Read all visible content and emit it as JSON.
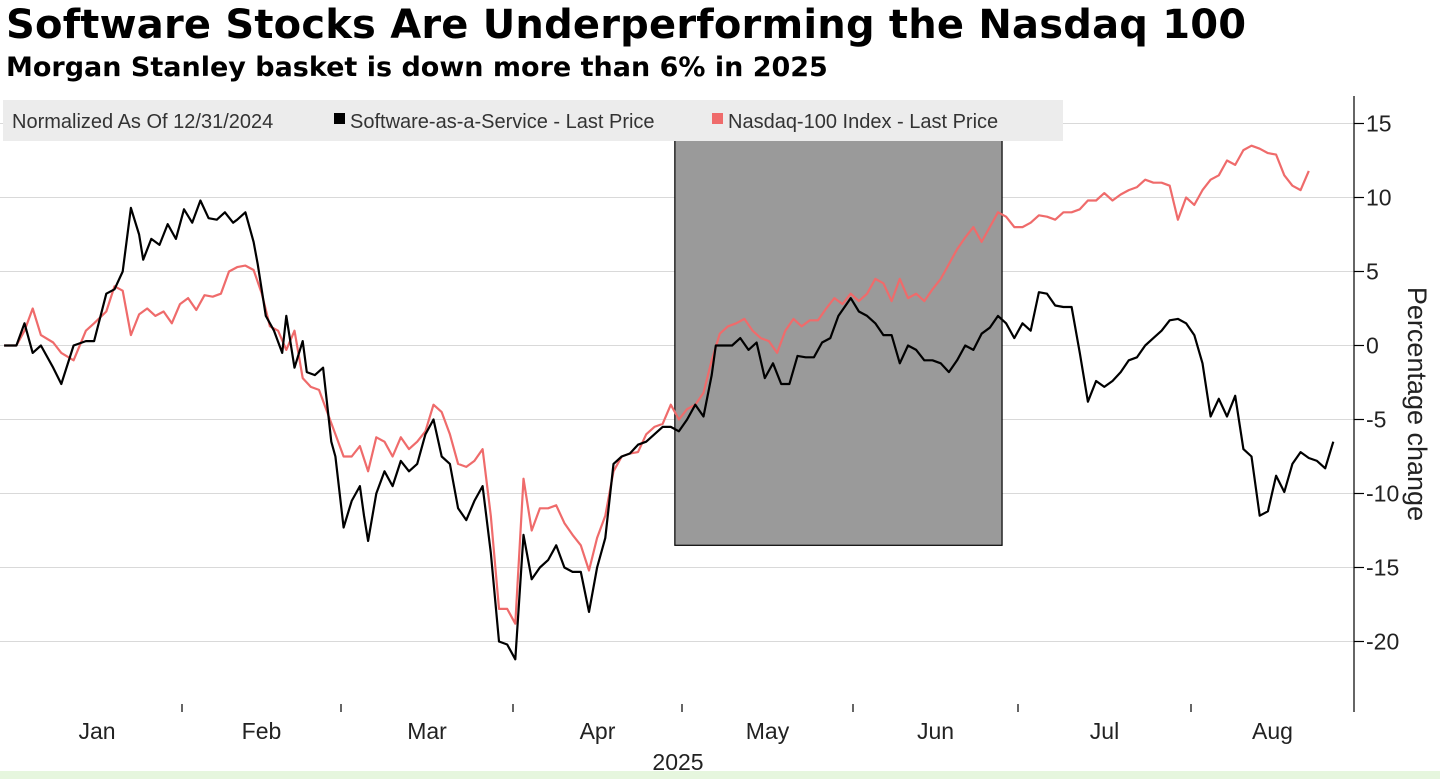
{
  "chart_data": {
    "type": "line",
    "title": "Software Stocks Are Underperforming the Nasdaq 100",
    "subtitle": "Morgan Stanley basket is down more than 6% in 2025",
    "legend_title": "Normalized As Of 12/31/2024",
    "legend_position": "top-left",
    "xlabel": "2025",
    "ylabel": "Percentage change",
    "ylim": [
      -23,
      17
    ],
    "y_ticks": [
      "15",
      "10",
      "5",
      "0",
      "-5",
      "-10",
      "-15",
      "-20"
    ],
    "x_ticks": [
      "Jan",
      "Feb",
      "Mar",
      "Apr",
      "May",
      "Jun",
      "Jul",
      "Aug"
    ],
    "highlight_region": {
      "from_day": 165,
      "to_day": 245,
      "from_value": -13.5,
      "to_value": 15.5,
      "color": "#9a9a9a"
    },
    "colors": {
      "saas": "#000000",
      "nasdaq": "#ef6b6b"
    },
    "series": [
      {
        "name": "Software-as-a-Service - Last Price",
        "color": "#000000",
        "points": [
          [
            1,
            0
          ],
          [
            4,
            0
          ],
          [
            6,
            1.5
          ],
          [
            8,
            -0.5
          ],
          [
            10,
            0
          ],
          [
            13,
            -1.5
          ],
          [
            15,
            -2.6
          ],
          [
            18,
            0
          ],
          [
            21,
            0.3
          ],
          [
            23,
            0.3
          ],
          [
            26,
            3.5
          ],
          [
            28,
            3.8
          ],
          [
            30,
            5
          ],
          [
            32,
            9.3
          ],
          [
            34,
            7.5
          ],
          [
            35,
            5.8
          ],
          [
            37,
            7.2
          ],
          [
            39,
            6.8
          ],
          [
            41,
            8.2
          ],
          [
            43,
            7.2
          ],
          [
            45,
            9.2
          ],
          [
            47,
            8.3
          ],
          [
            49,
            9.8
          ],
          [
            51,
            8.6
          ],
          [
            53,
            8.5
          ],
          [
            55,
            9
          ],
          [
            57,
            8.3
          ],
          [
            58,
            8.5
          ],
          [
            60,
            9
          ],
          [
            62,
            7
          ],
          [
            63,
            5.5
          ],
          [
            65,
            2
          ],
          [
            67,
            1
          ],
          [
            69,
            -0.5
          ],
          [
            70,
            2
          ],
          [
            72,
            -1.5
          ],
          [
            74,
            0.3
          ],
          [
            75,
            -1.8
          ],
          [
            77,
            -2
          ],
          [
            79,
            -1.5
          ],
          [
            81,
            -6.5
          ],
          [
            82,
            -7.5
          ],
          [
            84,
            -12.3
          ],
          [
            86,
            -10.5
          ],
          [
            88,
            -9.5
          ],
          [
            89,
            -11.5
          ],
          [
            90,
            -13.2
          ],
          [
            92,
            -10
          ],
          [
            94,
            -8.5
          ],
          [
            96,
            -9.5
          ],
          [
            98,
            -7.8
          ],
          [
            100,
            -8.5
          ],
          [
            102,
            -8
          ],
          [
            104,
            -6
          ],
          [
            106,
            -5
          ],
          [
            108,
            -7.5
          ],
          [
            110,
            -8
          ],
          [
            112,
            -11
          ],
          [
            114,
            -11.8
          ],
          [
            116,
            -10.5
          ],
          [
            118,
            -9.5
          ],
          [
            120,
            -14
          ],
          [
            122,
            -20
          ],
          [
            124,
            -20.2
          ],
          [
            126,
            -21.2
          ],
          [
            128,
            -12.8
          ],
          [
            130,
            -15.8
          ],
          [
            132,
            -15
          ],
          [
            134,
            -14.5
          ],
          [
            136,
            -13.5
          ],
          [
            138,
            -15
          ],
          [
            140,
            -15.3
          ],
          [
            142,
            -15.3
          ],
          [
            144,
            -18
          ],
          [
            146,
            -15
          ],
          [
            148,
            -13
          ],
          [
            150,
            -8
          ],
          [
            152,
            -7.5
          ],
          [
            154,
            -7.3
          ],
          [
            156,
            -6.7
          ],
          [
            158,
            -6.5
          ],
          [
            160,
            -6
          ],
          [
            162,
            -5.5
          ],
          [
            164,
            -5.5
          ],
          [
            166,
            -5.8
          ],
          [
            168,
            -5
          ],
          [
            170,
            -4
          ],
          [
            172,
            -4.8
          ],
          [
            174,
            -2
          ],
          [
            175,
            0
          ],
          [
            177,
            0
          ],
          [
            179,
            0
          ],
          [
            181,
            0.5
          ],
          [
            183,
            -0.3
          ],
          [
            185,
            0.2
          ],
          [
            187,
            -2.2
          ],
          [
            189,
            -1.2
          ],
          [
            191,
            -2.6
          ],
          [
            193,
            -2.6
          ],
          [
            195,
            -0.7
          ],
          [
            197,
            -0.8
          ],
          [
            199,
            -0.8
          ],
          [
            201,
            0.2
          ],
          [
            203,
            0.5
          ],
          [
            205,
            2
          ],
          [
            207,
            2.8
          ],
          [
            208,
            3.2
          ],
          [
            210,
            2.3
          ],
          [
            212,
            2
          ],
          [
            214,
            1.5
          ],
          [
            216,
            0.7
          ],
          [
            218,
            0.7
          ],
          [
            220,
            -1.2
          ],
          [
            222,
            0
          ],
          [
            224,
            -0.3
          ],
          [
            226,
            -1
          ],
          [
            228,
            -1
          ],
          [
            230,
            -1.2
          ],
          [
            232,
            -1.8
          ],
          [
            234,
            -1
          ],
          [
            236,
            0
          ],
          [
            238,
            -0.3
          ],
          [
            240,
            0.8
          ],
          [
            242,
            1.2
          ],
          [
            244,
            2
          ],
          [
            246,
            1.5
          ],
          [
            248,
            0.5
          ],
          [
            250,
            1.5
          ],
          [
            252,
            1
          ],
          [
            254,
            3.6
          ],
          [
            256,
            3.5
          ],
          [
            258,
            2.7
          ],
          [
            260,
            2.6
          ],
          [
            262,
            2.6
          ],
          [
            264,
            -0.5
          ],
          [
            266,
            -3.8
          ],
          [
            268,
            -2.4
          ],
          [
            270,
            -2.8
          ],
          [
            272,
            -2.4
          ],
          [
            274,
            -1.8
          ],
          [
            276,
            -1
          ],
          [
            278,
            -0.8
          ],
          [
            280,
            0
          ],
          [
            282,
            0.5
          ],
          [
            284,
            1
          ],
          [
            286,
            1.7
          ],
          [
            288,
            1.8
          ],
          [
            290,
            1.5
          ],
          [
            292,
            0.7
          ],
          [
            294,
            -1.2
          ],
          [
            296,
            -4.8
          ],
          [
            298,
            -3.6
          ],
          [
            300,
            -4.8
          ],
          [
            302,
            -3.4
          ],
          [
            304,
            -7
          ],
          [
            306,
            -7.5
          ],
          [
            308,
            -11.5
          ],
          [
            310,
            -11.2
          ],
          [
            312,
            -8.8
          ],
          [
            314,
            -9.9
          ],
          [
            316,
            -8
          ],
          [
            318,
            -7.2
          ],
          [
            320,
            -7.6
          ],
          [
            322,
            -7.8
          ],
          [
            324,
            -8.3
          ],
          [
            326,
            -6.5
          ]
        ]
      },
      {
        "name": "Nasdaq-100 Index - Last Price",
        "color": "#ef6b6b",
        "points": [
          [
            1,
            0
          ],
          [
            4,
            0
          ],
          [
            6,
            1
          ],
          [
            8,
            2.5
          ],
          [
            10,
            0.7
          ],
          [
            13,
            0.2
          ],
          [
            15,
            -0.5
          ],
          [
            18,
            -1
          ],
          [
            21,
            1
          ],
          [
            23,
            1.5
          ],
          [
            26,
            2.3
          ],
          [
            28,
            4
          ],
          [
            30,
            3.7
          ],
          [
            32,
            0.7
          ],
          [
            34,
            2.1
          ],
          [
            36,
            2.5
          ],
          [
            38,
            2
          ],
          [
            40,
            2.3
          ],
          [
            42,
            1.5
          ],
          [
            44,
            2.8
          ],
          [
            46,
            3.2
          ],
          [
            48,
            2.4
          ],
          [
            50,
            3.4
          ],
          [
            52,
            3.3
          ],
          [
            54,
            3.5
          ],
          [
            56,
            5
          ],
          [
            58,
            5.3
          ],
          [
            60,
            5.4
          ],
          [
            62,
            5.1
          ],
          [
            64,
            3.5
          ],
          [
            66,
            1.3
          ],
          [
            68,
            1
          ],
          [
            70,
            -0.3
          ],
          [
            72,
            1
          ],
          [
            74,
            -2.2
          ],
          [
            76,
            -2.8
          ],
          [
            78,
            -3
          ],
          [
            80,
            -4.5
          ],
          [
            82,
            -6
          ],
          [
            84,
            -7.5
          ],
          [
            86,
            -7.5
          ],
          [
            88,
            -6.8
          ],
          [
            90,
            -8.5
          ],
          [
            92,
            -6.2
          ],
          [
            94,
            -6.5
          ],
          [
            96,
            -7.5
          ],
          [
            98,
            -6.2
          ],
          [
            100,
            -7
          ],
          [
            102,
            -6.5
          ],
          [
            104,
            -5.8
          ],
          [
            106,
            -4
          ],
          [
            108,
            -4.5
          ],
          [
            110,
            -6
          ],
          [
            112,
            -8
          ],
          [
            114,
            -8.2
          ],
          [
            116,
            -7.8
          ],
          [
            118,
            -7
          ],
          [
            120,
            -11.5
          ],
          [
            122,
            -17.8
          ],
          [
            124,
            -17.8
          ],
          [
            126,
            -18.8
          ],
          [
            128,
            -9
          ],
          [
            130,
            -12.5
          ],
          [
            132,
            -11
          ],
          [
            134,
            -11
          ],
          [
            136,
            -10.8
          ],
          [
            138,
            -12
          ],
          [
            140,
            -12.8
          ],
          [
            142,
            -13.5
          ],
          [
            144,
            -15.2
          ],
          [
            146,
            -13
          ],
          [
            148,
            -11.5
          ],
          [
            150,
            -8.5
          ],
          [
            152,
            -7.5
          ],
          [
            154,
            -7.3
          ],
          [
            156,
            -7.2
          ],
          [
            158,
            -6
          ],
          [
            160,
            -5.5
          ],
          [
            162,
            -5.3
          ],
          [
            164,
            -4
          ],
          [
            166,
            -5
          ],
          [
            168,
            -4.3
          ],
          [
            170,
            -4
          ],
          [
            172,
            -3.2
          ],
          [
            174,
            -1
          ],
          [
            176,
            0.8
          ],
          [
            178,
            1.3
          ],
          [
            180,
            1.5
          ],
          [
            182,
            1.8
          ],
          [
            184,
            1
          ],
          [
            186,
            0.5
          ],
          [
            188,
            0.3
          ],
          [
            190,
            -0.5
          ],
          [
            192,
            1
          ],
          [
            194,
            1.8
          ],
          [
            196,
            1.3
          ],
          [
            198,
            1.7
          ],
          [
            200,
            1.7
          ],
          [
            202,
            2.5
          ],
          [
            204,
            3.2
          ],
          [
            206,
            2.8
          ],
          [
            208,
            3.5
          ],
          [
            210,
            3
          ],
          [
            212,
            3.5
          ],
          [
            214,
            4.5
          ],
          [
            216,
            4.2
          ],
          [
            218,
            3
          ],
          [
            220,
            4.5
          ],
          [
            222,
            3.2
          ],
          [
            224,
            3.5
          ],
          [
            226,
            3
          ],
          [
            228,
            3.8
          ],
          [
            230,
            4.5
          ],
          [
            232,
            5.5
          ],
          [
            234,
            6.5
          ],
          [
            236,
            7.3
          ],
          [
            238,
            8
          ],
          [
            240,
            7
          ],
          [
            242,
            8
          ],
          [
            244,
            9
          ],
          [
            246,
            8.7
          ],
          [
            248,
            8
          ],
          [
            250,
            8
          ],
          [
            252,
            8.3
          ],
          [
            254,
            8.8
          ],
          [
            256,
            8.7
          ],
          [
            258,
            8.5
          ],
          [
            260,
            9
          ],
          [
            262,
            9
          ],
          [
            264,
            9.2
          ],
          [
            266,
            9.8
          ],
          [
            268,
            9.8
          ],
          [
            270,
            10.3
          ],
          [
            272,
            9.8
          ],
          [
            274,
            10.2
          ],
          [
            276,
            10.5
          ],
          [
            278,
            10.7
          ],
          [
            280,
            11.2
          ],
          [
            282,
            11
          ],
          [
            284,
            11
          ],
          [
            286,
            10.8
          ],
          [
            288,
            8.5
          ],
          [
            290,
            10
          ],
          [
            292,
            9.5
          ],
          [
            294,
            10.5
          ],
          [
            296,
            11.2
          ],
          [
            298,
            11.5
          ],
          [
            300,
            12.5
          ],
          [
            302,
            12.2
          ],
          [
            304,
            13.2
          ],
          [
            306,
            13.5
          ],
          [
            308,
            13.3
          ],
          [
            310,
            13
          ],
          [
            312,
            12.9
          ],
          [
            314,
            11.5
          ],
          [
            316,
            10.8
          ],
          [
            318,
            10.5
          ],
          [
            320,
            11.8
          ]
        ]
      }
    ]
  }
}
